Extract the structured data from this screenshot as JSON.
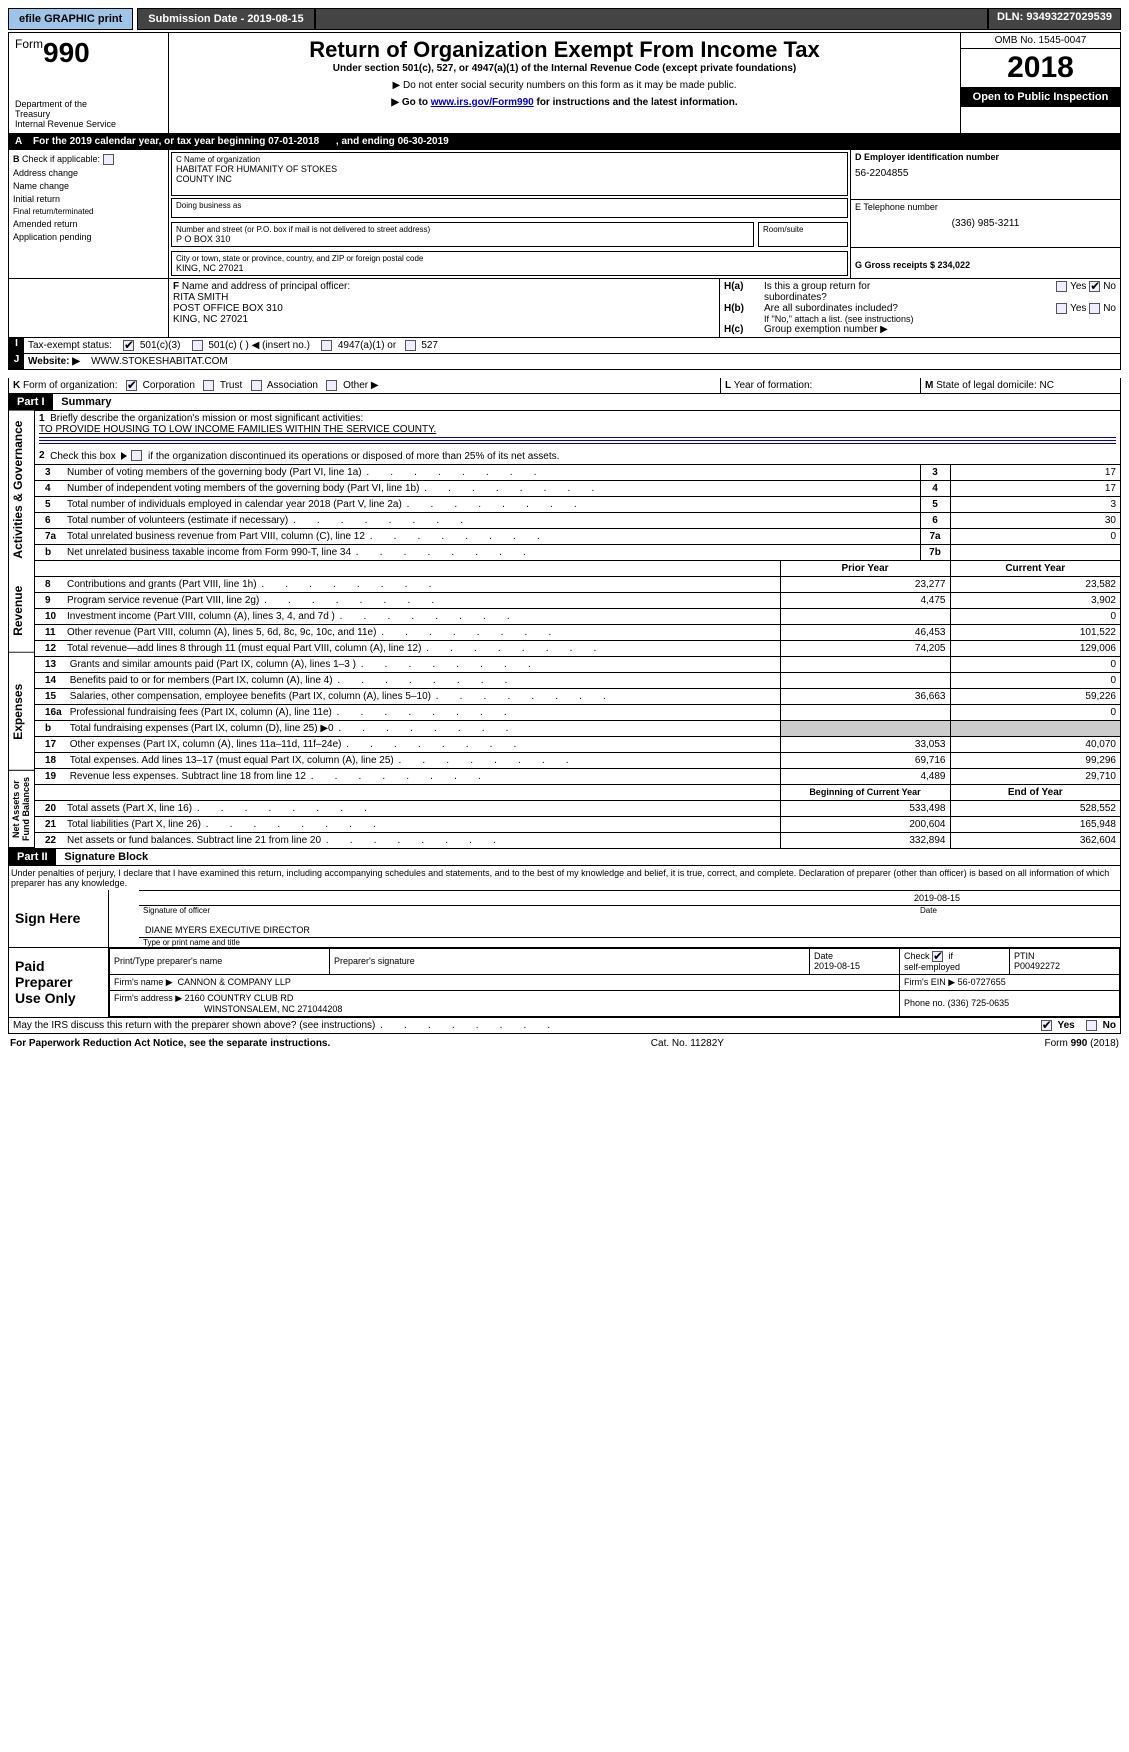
{
  "topbar": {
    "efile_label": "efile GRAPHIC print",
    "submission_label": "Submission Date - 2019-08-15",
    "dln": "DLN: 93493227029539"
  },
  "header": {
    "form_word": "Form",
    "form_number": "990",
    "dept1": "Department of the",
    "dept2": "Treasury",
    "dept3": "Internal Revenue Service",
    "title": "Return of Organization Exempt From Income Tax",
    "subtitle": "Under section 501(c), 527, or 4947(a)(1) of the Internal Revenue Code (except private foundations)",
    "note1": "▶ Do not enter social security numbers on this form as it may be made public.",
    "note2_a": "▶ Go to ",
    "note2_link": "www.irs.gov/Form990",
    "note2_b": " for instructions and the latest information.",
    "omb": "OMB No. 1545-0047",
    "year": "2018",
    "open_public": "Open to Public Inspection"
  },
  "rowA": {
    "label_a": "A",
    "text1": "For the 2019 calendar year, or tax year beginning 07-01-2018",
    "text2": ", and ending 06-30-2019"
  },
  "sectionB": {
    "B_label": "B",
    "check_label": "Check if applicable:",
    "opts": {
      "addr": "Address change",
      "name": "Name change",
      "initial": "Initial return",
      "final": "Final return/terminated",
      "amended": "Amended return",
      "app": "Application pending"
    },
    "C_label": "C Name of organization",
    "org_name1": "HABITAT FOR HUMANITY OF STOKES",
    "org_name2": "COUNTY INC",
    "dba_label": "Doing business as",
    "street_label": "Number and street (or P.O. box if mail is not delivered to street address)",
    "street": "P O BOX 310",
    "room_label": "Room/suite",
    "city_label": "City or town, state or province, country, and ZIP or foreign postal code",
    "city": "KING, NC  27021",
    "D_label": "D Employer identification number",
    "ein": "56-2204855",
    "E_label": "E Telephone number",
    "phone": "(336) 985-3211",
    "G_label": "G Gross receipts $ 234,022"
  },
  "sectionF": {
    "F_label": "F",
    "title": "Name and address of principal officer:",
    "line1": "RITA SMITH",
    "line2": "POST OFFICE BOX 310",
    "line3": "KING, NC  27021",
    "Ha_label": "H(a)",
    "Ha_text": "Is this a group return for",
    "Ha_text2": "subordinates?",
    "Hb_label": "H(b)",
    "Hb_text": "Are all subordinates included?",
    "Hb_note": "If \"No,\" attach a list. (see instructions)",
    "Hc_label": "H(c)",
    "Hc_text": "Group exemption number ▶",
    "yes": "Yes",
    "no": "No"
  },
  "rowI": {
    "I": "I",
    "label": "Tax-exempt status:",
    "opt1": "501(c)(3)",
    "opt2": "501(c) (   ) ◀ (insert no.)",
    "opt3": "4947(a)(1) or",
    "opt4": "527"
  },
  "rowJ": {
    "J": "J",
    "label": "Website: ▶",
    "url": "WWW.STOKESHABITAT.COM"
  },
  "rowK": {
    "K": "K",
    "label": "Form of organization:",
    "opts": {
      "corp": "Corporation",
      "trust": "Trust",
      "assoc": "Association",
      "other": "Other ▶"
    }
  },
  "rowL": {
    "L": "L",
    "l_text": "Year of formation:",
    "M": "M",
    "m_text": "State of legal domicile: NC"
  },
  "part1": {
    "part": "Part I",
    "title": "Summary",
    "vert_ag": "Activities & Governance",
    "vert_rev": "Revenue",
    "vert_exp": "Expenses",
    "vert_net": "Net Assets or Fund Balances",
    "l1_label": "1",
    "l1_text": "Briefly describe the organization's mission or most significant activities:",
    "l1_answer": "TO PROVIDE HOUSING TO LOW INCOME FAMILIES WITHIN THE SERVICE COUNTY.",
    "l2_label": "2",
    "l2_text": "Check this box ▶       if the organization discontinued its operations or disposed of more than 25% of its net assets.",
    "lines_ag": [
      {
        "n": "3",
        "desc": "Number of voting members of the governing body (Part VI, line 1a)",
        "box": "3",
        "val": "17"
      },
      {
        "n": "4",
        "desc": "Number of independent voting members of the governing body (Part VI, line 1b)",
        "box": "4",
        "val": "17"
      },
      {
        "n": "5",
        "desc": "Total number of individuals employed in calendar year 2018 (Part V, line 2a)",
        "box": "5",
        "val": "3"
      },
      {
        "n": "6",
        "desc": "Total number of volunteers (estimate if necessary)",
        "box": "6",
        "val": "30"
      },
      {
        "n": "7a",
        "desc": "Total unrelated business revenue from Part VIII, column (C), line 12",
        "box": "7a",
        "val": "0"
      },
      {
        "n": "b",
        "desc": "Net unrelated business taxable income from Form 990-T, line 34",
        "box": "7b",
        "val": ""
      }
    ],
    "col_prior": "Prior Year",
    "col_current": "Current Year",
    "lines_rev": [
      {
        "n": "8",
        "desc": "Contributions and grants (Part VIII, line 1h)",
        "py": "23,277",
        "cy": "23,582"
      },
      {
        "n": "9",
        "desc": "Program service revenue (Part VIII, line 2g)",
        "py": "4,475",
        "cy": "3,902"
      },
      {
        "n": "10",
        "desc": "Investment income (Part VIII, column (A), lines 3, 4, and 7d )",
        "py": "",
        "cy": "0"
      },
      {
        "n": "11",
        "desc": "Other revenue (Part VIII, column (A), lines 5, 6d, 8c, 9c, 10c, and 11e)",
        "py": "46,453",
        "cy": "101,522"
      },
      {
        "n": "12",
        "desc": "Total revenue—add lines 8 through 11 (must equal Part VIII, column (A), line 12)",
        "py": "74,205",
        "cy": "129,006"
      }
    ],
    "lines_exp": [
      {
        "n": "13",
        "desc": "Grants and similar amounts paid (Part IX, column (A), lines 1–3 )",
        "py": "",
        "cy": "0"
      },
      {
        "n": "14",
        "desc": "Benefits paid to or for members (Part IX, column (A), line 4)",
        "py": "",
        "cy": "0"
      },
      {
        "n": "15",
        "desc": "Salaries, other compensation, employee benefits (Part IX, column (A), lines 5–10)",
        "py": "36,663",
        "cy": "59,226"
      },
      {
        "n": "16a",
        "desc": "Professional fundraising fees (Part IX, column (A), line 11e)",
        "py": "",
        "cy": "0"
      },
      {
        "n": "b",
        "desc": "Total fundraising expenses (Part IX, column (D), line 25) ▶0",
        "py": "shade",
        "cy": "shade"
      },
      {
        "n": "17",
        "desc": "Other expenses (Part IX, column (A), lines 11a–11d, 11f–24e)",
        "py": "33,053",
        "cy": "40,070"
      },
      {
        "n": "18",
        "desc": "Total expenses. Add lines 13–17 (must equal Part IX, column (A), line 25)",
        "py": "69,716",
        "cy": "99,296"
      },
      {
        "n": "19",
        "desc": "Revenue less expenses. Subtract line 18 from line 12",
        "py": "4,489",
        "cy": "29,710"
      }
    ],
    "col_boy": "Beginning of Current Year",
    "col_eoy": "End of Year",
    "lines_net": [
      {
        "n": "20",
        "desc": "Total assets (Part X, line 16)",
        "py": "533,498",
        "cy": "528,552"
      },
      {
        "n": "21",
        "desc": "Total liabilities (Part X, line 26)",
        "py": "200,604",
        "cy": "165,948"
      },
      {
        "n": "22",
        "desc": "Net assets or fund balances. Subtract line 21 from line 20",
        "py": "332,894",
        "cy": "362,604"
      }
    ]
  },
  "part2": {
    "part": "Part II",
    "title": "Signature Block",
    "perjury": "Under penalties of perjury, I declare that I have examined this return, including accompanying schedules and statements, and to the best of my knowledge and belief, it is true, correct, and complete. Declaration of preparer (other than officer) is based on all information of which preparer has any knowledge.",
    "sign_here": "Sign Here",
    "sig_officer": "Signature of officer",
    "sig_date": "2019-08-15",
    "date_label": "Date",
    "officer_name": "DIANE MYERS  EXECUTIVE DIRECTOR",
    "type_name": "Type or print name and title",
    "paid": "Paid Preparer Use Only",
    "prep_name_label": "Print/Type preparer's name",
    "prep_sig_label": "Preparer's signature",
    "prep_date_label": "Date",
    "prep_date": "2019-08-15",
    "check_self": "Check        if self-employed",
    "ptin_label": "PTIN",
    "ptin": "P00492272",
    "firm_name_label": "Firm's name    ▶",
    "firm_name": "CANNON & COMPANY LLP",
    "firm_ein_label": "Firm's EIN ▶",
    "firm_ein": "56-0727655",
    "firm_addr_label": "Firm's address ▶",
    "firm_addr1": "2160 COUNTRY CLUB RD",
    "firm_addr2": "WINSTONSALEM, NC  271044208",
    "phone_label": "Phone no.",
    "phone": "(336) 725-0635",
    "discuss": "May the IRS discuss this return with the preparer shown above? (see instructions)",
    "yes": "Yes",
    "no": "No"
  },
  "footer": {
    "left": "For Paperwork Reduction Act Notice, see the separate instructions.",
    "center": "Cat. No. 11282Y",
    "right": "Form 990 (2018)"
  }
}
